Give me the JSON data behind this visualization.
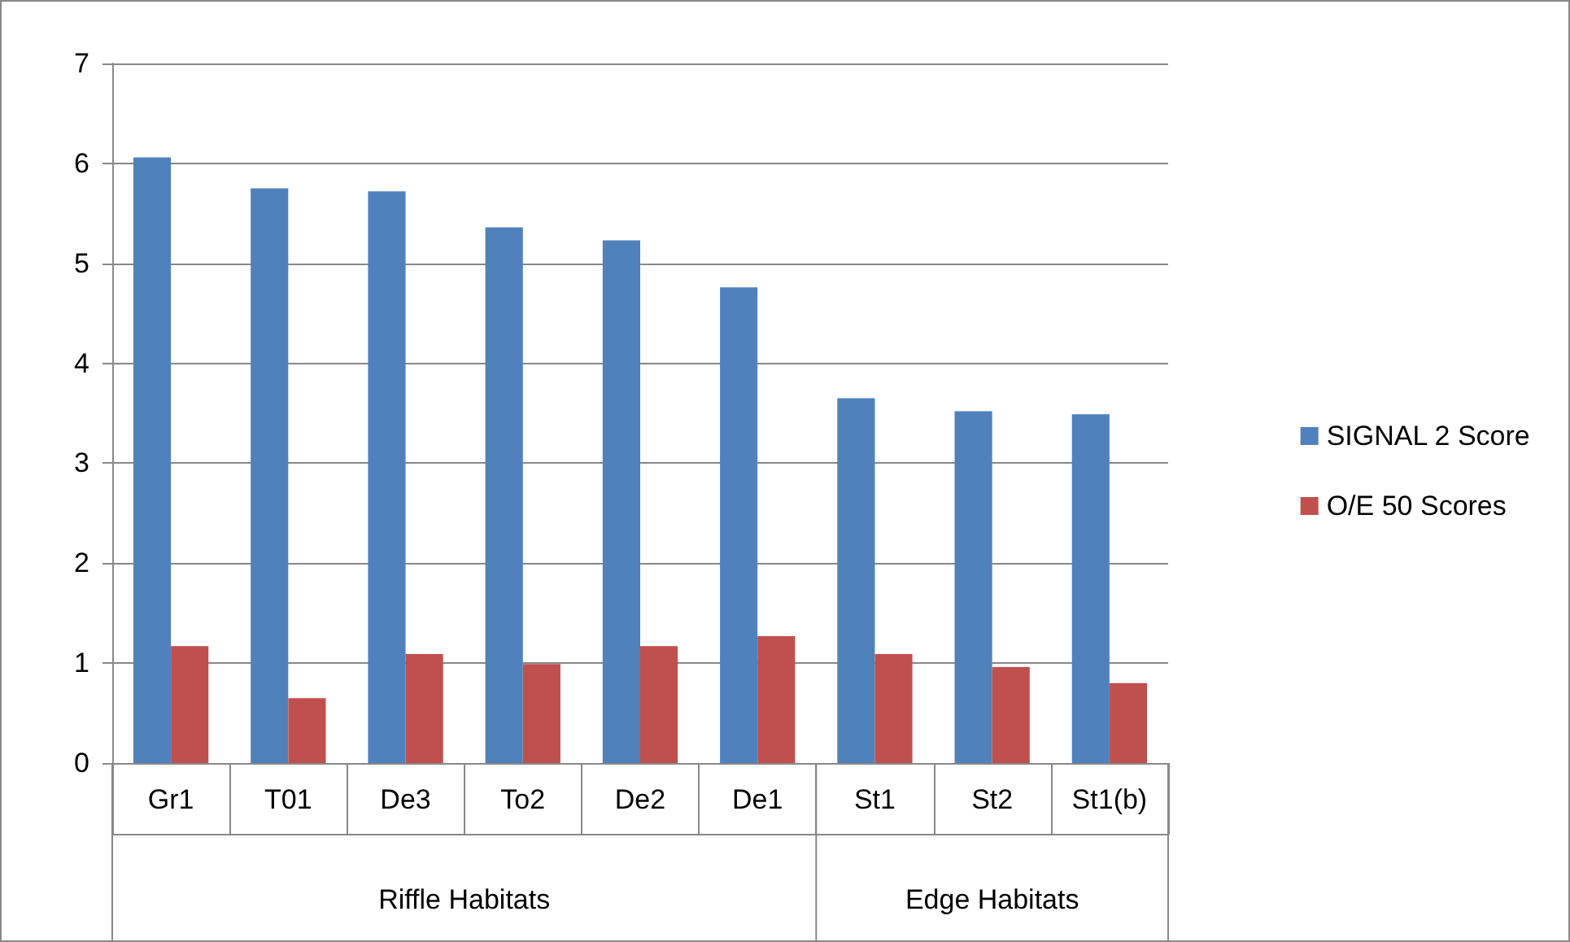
{
  "chart_data": {
    "type": "bar",
    "categories": [
      "Gr1",
      "T01",
      "De3",
      "To2",
      "De2",
      "De1",
      "St1",
      "St2",
      "St1(b)"
    ],
    "series": [
      {
        "name": "SIGNAL 2 Score",
        "color": "#4f81bd",
        "values": [
          6.06,
          5.75,
          5.72,
          5.36,
          5.23,
          4.76,
          3.65,
          3.52,
          3.49
        ]
      },
      {
        "name": "O/E 50 Scores",
        "color": "#c0504d",
        "values": [
          1.17,
          0.65,
          1.09,
          0.99,
          1.17,
          1.27,
          1.09,
          0.96,
          0.8
        ]
      }
    ],
    "annotations": [
      "Riffle Habitats",
      "Edge Habitats"
    ],
    "ylim": [
      0,
      7
    ],
    "yticks": [
      0,
      1,
      2,
      3,
      4,
      5,
      6,
      7
    ],
    "grid": "y",
    "legend": "right"
  }
}
